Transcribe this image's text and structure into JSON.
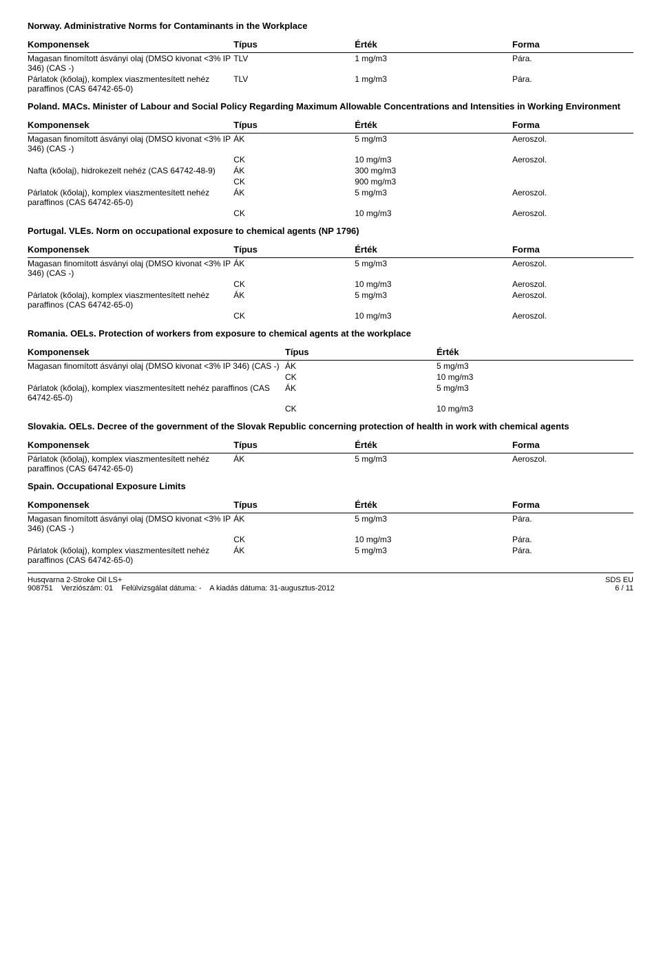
{
  "headers": {
    "komponensek": "Komponensek",
    "tipus": "Típus",
    "ertek": "Érték",
    "forma": "Forma"
  },
  "components": {
    "magasan": "Magasan finomított ásványi olaj (DMSO kivonat <3% IP 346) (CAS -)",
    "parlatok": "Párlatok (kőolaj), komplex viaszmentesített nehéz paraffinos (CAS 64742-65-0)",
    "nafta": "Nafta (kőolaj), hidrokezelt nehéz (CAS 64742-48-9)"
  },
  "sections": [
    {
      "title": "Norway. Administrative Norms for Contaminants in the Workplace",
      "hasForma": true,
      "rows": [
        {
          "komp": "magasan",
          "tipus": "TLV",
          "ertek": "1 mg/m3",
          "forma": "Pára."
        },
        {
          "komp": "parlatok",
          "tipus": "TLV",
          "ertek": "1 mg/m3",
          "forma": "Pára."
        }
      ]
    },
    {
      "title": "Poland. MACs. Minister of Labour and Social Policy Regarding Maximum Allowable Concentrations and Intensities in Working Environment",
      "hasForma": true,
      "rows": [
        {
          "komp": "magasan",
          "tipus": "ÁK",
          "ertek": "5 mg/m3",
          "forma": "Aeroszol."
        },
        {
          "komp": "",
          "tipus": "CK",
          "ertek": "10 mg/m3",
          "forma": "Aeroszol."
        },
        {
          "komp": "nafta",
          "tipus": "ÁK",
          "ertek": "300 mg/m3",
          "forma": ""
        },
        {
          "komp": "",
          "tipus": "CK",
          "ertek": "900 mg/m3",
          "forma": ""
        },
        {
          "komp": "parlatok",
          "tipus": "ÁK",
          "ertek": "5 mg/m3",
          "forma": "Aeroszol."
        },
        {
          "komp": "",
          "tipus": "CK",
          "ertek": "10 mg/m3",
          "forma": "Aeroszol."
        }
      ]
    },
    {
      "title": "Portugal. VLEs. Norm on occupational exposure to chemical agents (NP 1796)",
      "hasForma": true,
      "rows": [
        {
          "komp": "magasan",
          "tipus": "ÁK",
          "ertek": "5 mg/m3",
          "forma": "Aeroszol."
        },
        {
          "komp": "",
          "tipus": "CK",
          "ertek": "10 mg/m3",
          "forma": "Aeroszol."
        },
        {
          "komp": "parlatok",
          "tipus": "ÁK",
          "ertek": "5 mg/m3",
          "forma": "Aeroszol."
        },
        {
          "komp": "",
          "tipus": "CK",
          "ertek": "10 mg/m3",
          "forma": "Aeroszol."
        }
      ]
    },
    {
      "title": "Romania. OELs. Protection of workers from exposure to chemical agents at the workplace",
      "hasForma": false,
      "rows": [
        {
          "komp": "magasan",
          "tipus": "ÁK",
          "ertek": "5 mg/m3",
          "forma": ""
        },
        {
          "komp": "",
          "tipus": "CK",
          "ertek": "10 mg/m3",
          "forma": ""
        },
        {
          "komp": "parlatok",
          "tipus": "ÁK",
          "ertek": "5 mg/m3",
          "forma": ""
        },
        {
          "komp": "",
          "tipus": "CK",
          "ertek": "10 mg/m3",
          "forma": ""
        }
      ]
    },
    {
      "title": "Slovakia. OELs. Decree of the government of the Slovak Republic concerning protection of health in work with chemical agents",
      "hasForma": true,
      "rows": [
        {
          "komp": "parlatok",
          "tipus": "ÁK",
          "ertek": "5 mg/m3",
          "forma": "Aeroszol."
        }
      ]
    },
    {
      "title": "Spain. Occupational Exposure Limits",
      "hasForma": true,
      "rows": [
        {
          "komp": "magasan",
          "tipus": "ÁK",
          "ertek": "5 mg/m3",
          "forma": "Pára."
        },
        {
          "komp": "",
          "tipus": "CK",
          "ertek": "10 mg/m3",
          "forma": "Pára."
        },
        {
          "komp": "parlatok",
          "tipus": "ÁK",
          "ertek": "5 mg/m3",
          "forma": "Pára."
        }
      ]
    }
  ],
  "footer": {
    "product": "Husqvarna 2-Stroke Oil LS+",
    "sds": "SDS EU",
    "line2_id": "908751",
    "line2_version": "Verziószám: 01",
    "line2_rev": "Felülvizsgálat dátuma: -",
    "line2_date": "A kiadás dátuma: 31-augusztus-2012",
    "page": "6 / 11"
  }
}
